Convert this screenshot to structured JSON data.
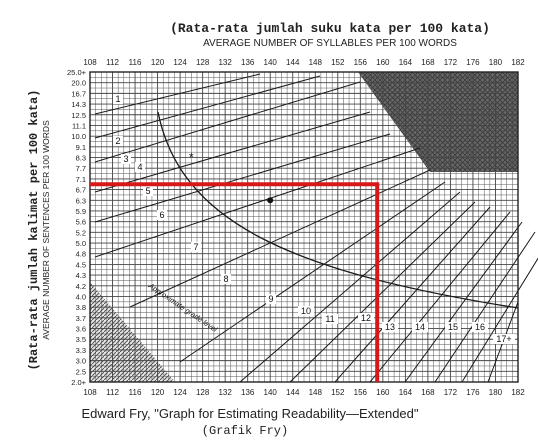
{
  "chart_data": {
    "type": "line",
    "title_top_id": "(Rata-rata jumlah suku kata per 100 kata)",
    "title_top_en": "AVERAGE NUMBER OF SYLLABLES PER 100 WORDS",
    "ylabel_id": "(Rata-rata jumlah kalimat per 100 kata)",
    "ylabel_en": "AVERAGE NUMBER OF SENTENCES PER 100 WORDS",
    "caption": "Edward Fry, \"Graph for Estimating Readability—Extended\"",
    "caption_id": "(Grafik Fry)",
    "diagonal_label": "Approximate grade level",
    "x_ticks": [
      "108",
      "112",
      "116",
      "120",
      "124",
      "128",
      "132",
      "136",
      "140",
      "144",
      "148",
      "152",
      "156",
      "160",
      "164",
      "168",
      "172",
      "176",
      "180",
      "182"
    ],
    "y_ticks": [
      "25.0+",
      "20.0",
      "16.7",
      "14.3",
      "12.5",
      "11.1",
      "10.0",
      "9.1",
      "8.3",
      "7.7",
      "7.1",
      "6.7",
      "6.3",
      "5.9",
      "5.6",
      "5.2",
      "5.0",
      "4.8",
      "4.5",
      "4.3",
      "4.2",
      "4.0",
      "3.8",
      "3.7",
      "3.6",
      "3.5",
      "3.3",
      "3.0",
      "2.5",
      "2.0+"
    ],
    "grade_levels": [
      "1",
      "2",
      "3",
      "4",
      "5",
      "6",
      "7",
      "8",
      "9",
      "10",
      "11",
      "12",
      "13",
      "14",
      "15",
      "16",
      "17+"
    ],
    "highlight": {
      "syllables": 159,
      "sentences": 6.9
    },
    "sample_point": {
      "syllables": 140,
      "sentences": 6.3
    },
    "star_point": {
      "syllables": 126,
      "sentences": 8.3
    },
    "colors": {
      "highlight": "#d81818",
      "grid": "#333333",
      "shade": "#555555"
    }
  }
}
